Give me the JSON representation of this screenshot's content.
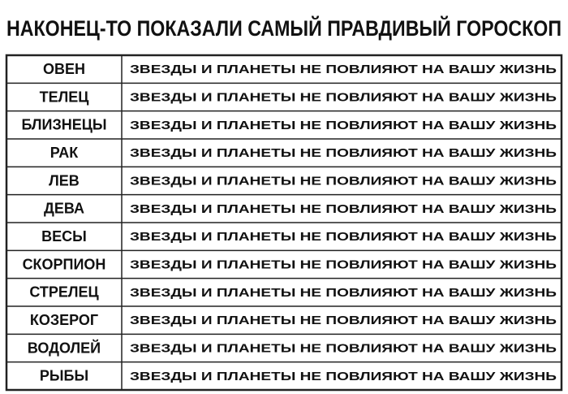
{
  "title": "НАКОНЕЦ-ТО ПОКАЗАЛИ САМЫЙ ПРАВДИВЫЙ ГОРОСКОП",
  "table": {
    "rows": [
      [
        "ОВЕН",
        "ЗВЕЗДЫ И ПЛАНЕТЫ НЕ ПОВЛИЯЮТ НА ВАШУ ЖИЗНЬ"
      ],
      [
        "ТЕЛЕЦ",
        "ЗВЕЗДЫ И ПЛАНЕТЫ НЕ ПОВЛИЯЮТ НА ВАШУ ЖИЗНЬ"
      ],
      [
        "БЛИЗНЕЦЫ",
        "ЗВЕЗДЫ И ПЛАНЕТЫ НЕ ПОВЛИЯЮТ НА ВАШУ ЖИЗНЬ"
      ],
      [
        "РАК",
        "ЗВЕЗДЫ И ПЛАНЕТЫ НЕ ПОВЛИЯЮТ НА ВАШУ ЖИЗНЬ"
      ],
      [
        "ЛЕВ",
        "ЗВЕЗДЫ И ПЛАНЕТЫ НЕ ПОВЛИЯЮТ НА ВАШУ ЖИЗНЬ"
      ],
      [
        "ДЕВА",
        "ЗВЕЗДЫ И ПЛАНЕТЫ НЕ ПОВЛИЯЮТ НА ВАШУ ЖИЗНЬ"
      ],
      [
        "ВЕСЫ",
        "ЗВЕЗДЫ И ПЛАНЕТЫ НЕ ПОВЛИЯЮТ НА ВАШУ ЖИЗНЬ"
      ],
      [
        "СКОРПИОН",
        "ЗВЕЗДЫ И ПЛАНЕТЫ НЕ ПОВЛИЯЮТ НА ВАШУ ЖИЗНЬ"
      ],
      [
        "СТРЕЛЕЦ",
        "ЗВЕЗДЫ И ПЛАНЕТЫ НЕ ПОВЛИЯЮТ НА ВАШУ ЖИЗНЬ"
      ],
      [
        "КОЗЕРОГ",
        "ЗВЕЗДЫ И ПЛАНЕТЫ НЕ ПОВЛИЯЮТ НА ВАШУ ЖИЗНЬ"
      ],
      [
        "ВОДОЛЕЙ",
        "ЗВЕЗДЫ И ПЛАНЕТЫ НЕ ПОВЛИЯЮТ НА ВАШУ ЖИЗНЬ"
      ],
      [
        "РЫБЫ",
        "ЗВЕЗДЫ И ПЛАНЕТЫ НЕ ПОВЛИЯЮТ НА ВАШУ ЖИЗНЬ"
      ]
    ]
  }
}
